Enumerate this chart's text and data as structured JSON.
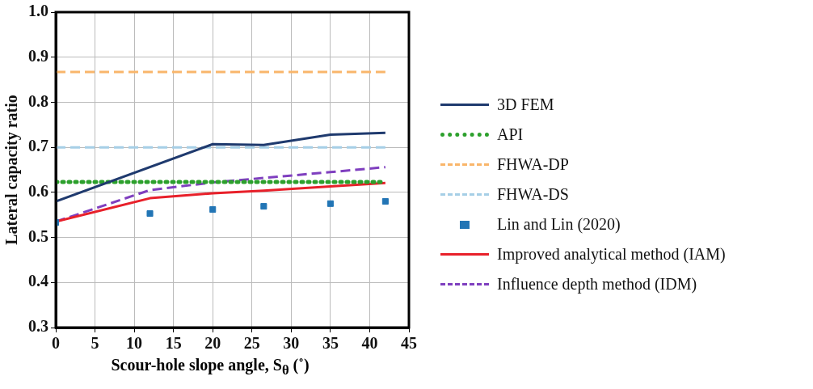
{
  "chart_data": {
    "type": "line",
    "xlabel": "Scour-hole slope angle, S$_{θ}$ (˚)",
    "ylabel": "Lateral capacity ratio",
    "xlim": [
      0,
      45
    ],
    "xticks": [
      0,
      5,
      10,
      15,
      20,
      25,
      30,
      35,
      40,
      45
    ],
    "ylim": [
      0.3,
      1.0
    ],
    "yticks": [
      0.3,
      0.4,
      0.5,
      0.6,
      0.7,
      0.8,
      0.9,
      {
        "value": 1,
        "label": "1.0"
      }
    ],
    "grid": true,
    "legend": "right",
    "marker": "none",
    "series": [
      {
        "name": "3D FEM",
        "color": "#1f3a6e",
        "x": [
          0,
          20,
          26.5,
          35,
          42
        ],
        "values": [
          0.58,
          0.707,
          0.705,
          0.728,
          0.732
        ],
        "line_style": "solid"
      },
      {
        "name": "API",
        "color": "#2ca02c",
        "x": [
          0,
          42
        ],
        "values": [
          0.623,
          0.623
        ],
        "line_style": "dotted"
      },
      {
        "name": "FHWA-DP",
        "color": "#f9b66b",
        "x": [
          0,
          42
        ],
        "values": [
          0.867,
          0.867
        ],
        "line_style": "dashed"
      },
      {
        "name": "FHWA-DS",
        "color": "#a6cfe6",
        "x": [
          0,
          42
        ],
        "values": [
          0.7,
          0.7
        ],
        "line_style": "dashed"
      },
      {
        "name": "Lin and Lin (2020)",
        "type": "scatter",
        "marker": "square",
        "color": "#2275b5",
        "x": [
          0,
          12,
          20,
          26.5,
          35,
          42
        ],
        "values": [
          0.533,
          0.553,
          0.562,
          0.569,
          0.575,
          0.58
        ]
      },
      {
        "name": "Improved analytical method (IAM)",
        "color": "#e8202a",
        "x": [
          0,
          12,
          20,
          26.5,
          35,
          42
        ],
        "values": [
          0.535,
          0.587,
          0.598,
          0.604,
          0.613,
          0.621
        ],
        "line_style": "solid"
      },
      {
        "name": "Influence depth method (IDM)",
        "color": "#7f3fbf",
        "x": [
          0,
          12,
          20,
          26.5,
          35,
          42
        ],
        "values": [
          0.535,
          0.605,
          0.622,
          0.632,
          0.645,
          0.656
        ],
        "line_style": "dashed"
      }
    ]
  }
}
